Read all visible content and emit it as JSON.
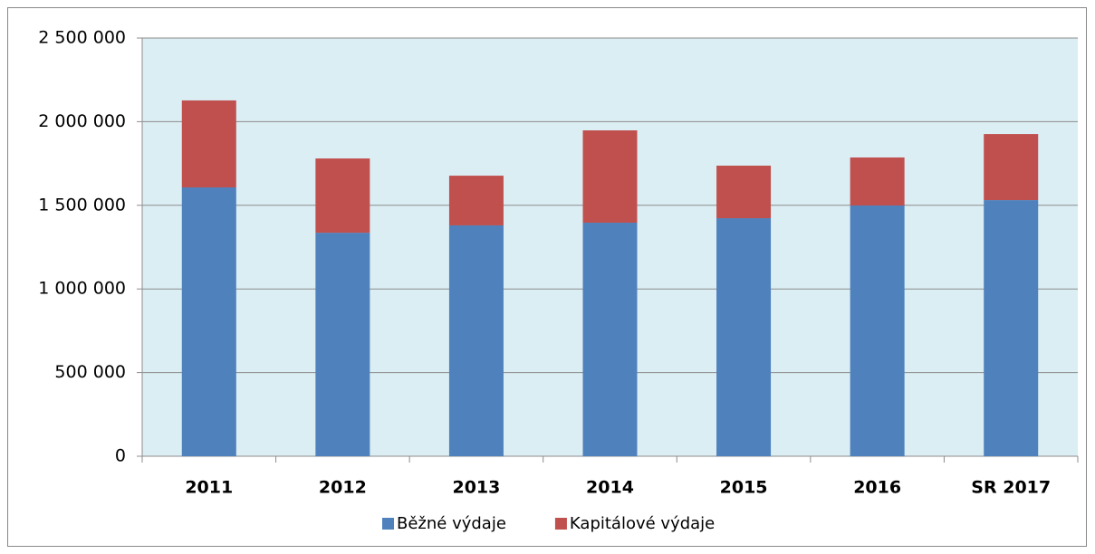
{
  "chart_data": {
    "type": "stacked_bar",
    "categories": [
      "2011",
      "2012",
      "2013",
      "2014",
      "2015",
      "2016",
      "SR 2017"
    ],
    "series": [
      {
        "name": "Běžné výdaje",
        "color": "#4f81bd",
        "values": [
          1607000,
          1336000,
          1380000,
          1396000,
          1423000,
          1499000,
          1531000
        ]
      },
      {
        "name": "Kapitálové výdaje",
        "color": "#c0504d",
        "values": [
          520000,
          444000,
          297000,
          552000,
          314000,
          287000,
          395000
        ]
      }
    ],
    "ylim": [
      0,
      2500000
    ],
    "yticks": [
      0,
      {
        "value": 500000,
        "label": "500 000"
      },
      {
        "value": 1000000,
        "label": "1 000 000"
      },
      {
        "value": 1500000,
        "label": "1 500 000"
      },
      {
        "value": 2000000,
        "label": "2 000 000"
      },
      {
        "value": 2500000,
        "label": "2 500 000"
      }
    ],
    "grid": true,
    "legend": "bottom"
  }
}
